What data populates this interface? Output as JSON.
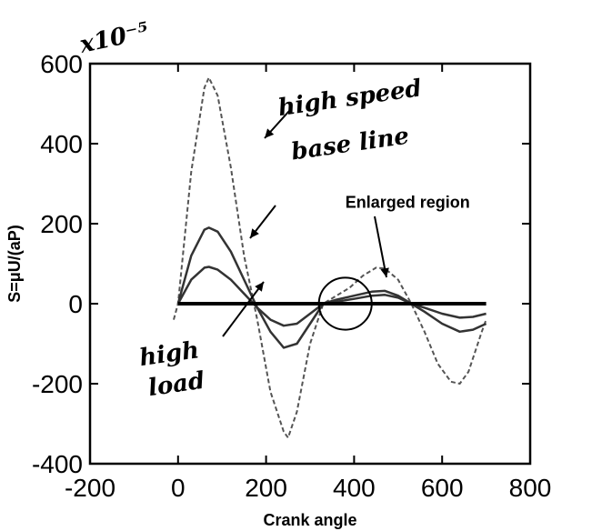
{
  "chart_data": {
    "type": "line",
    "title": "",
    "xlabel": "Crank angle",
    "ylabel": "S=μU/(aP)",
    "scale_note": "x10⁻⁵",
    "xlim": [
      -200,
      800
    ],
    "ylim": [
      -400,
      600
    ],
    "xticks": [
      -200,
      0,
      200,
      400,
      600,
      800
    ],
    "yticks": [
      -400,
      -200,
      0,
      200,
      400,
      600
    ],
    "grid": false,
    "legend": "none",
    "series": [
      {
        "style": "dashed",
        "x": [
          -10,
          0,
          30,
          60,
          70,
          90,
          120,
          150,
          180,
          210,
          240,
          250,
          270,
          300,
          330,
          360,
          390,
          420,
          450,
          470,
          500,
          530,
          560,
          590,
          620,
          640,
          660,
          690,
          700
        ],
        "y": [
          -40,
          0,
          330,
          540,
          565,
          520,
          340,
          120,
          -40,
          -220,
          -320,
          -335,
          -270,
          -100,
          0,
          20,
          40,
          70,
          90,
          88,
          60,
          0,
          -70,
          -150,
          -195,
          -200,
          -170,
          -70,
          -40
        ]
      },
      {
        "style": "solid",
        "x": [
          0,
          30,
          60,
          70,
          90,
          120,
          150,
          180,
          210,
          240,
          270,
          300,
          330,
          360,
          400,
          440,
          470,
          500,
          530,
          560,
          600,
          640,
          670,
          700
        ],
        "y": [
          0,
          120,
          185,
          190,
          180,
          130,
          60,
          -10,
          -70,
          -110,
          -100,
          -50,
          0,
          10,
          20,
          30,
          32,
          20,
          0,
          -20,
          -50,
          -70,
          -65,
          -50
        ]
      },
      {
        "style": "solid",
        "x": [
          0,
          30,
          60,
          70,
          90,
          120,
          150,
          180,
          210,
          240,
          270,
          300,
          330,
          360,
          400,
          440,
          470,
          500,
          530,
          560,
          600,
          640,
          670,
          700
        ],
        "y": [
          0,
          60,
          90,
          92,
          85,
          60,
          25,
          -10,
          -40,
          -55,
          -50,
          -25,
          0,
          5,
          12,
          20,
          22,
          15,
          0,
          -10,
          -25,
          -35,
          -33,
          -25
        ]
      },
      {
        "style": "solid-thick",
        "x": [
          0,
          700
        ],
        "y": [
          0,
          0
        ]
      }
    ],
    "annotations": [
      {
        "text": "high speed",
        "handwritten": true,
        "x": 230,
        "y": 470
      },
      {
        "text": "base line",
        "handwritten": true,
        "x": 260,
        "y": 360
      },
      {
        "text": "Enlarged region",
        "handwritten": false,
        "x": 380,
        "y": 240
      },
      {
        "text": "high",
        "handwritten": true,
        "x": -85,
        "y": -155
      },
      {
        "text": "load",
        "handwritten": true,
        "x": -65,
        "y": -230
      }
    ],
    "enlarged_circle": {
      "x": 380,
      "y": 0,
      "rx": 60,
      "ry": 65
    }
  }
}
